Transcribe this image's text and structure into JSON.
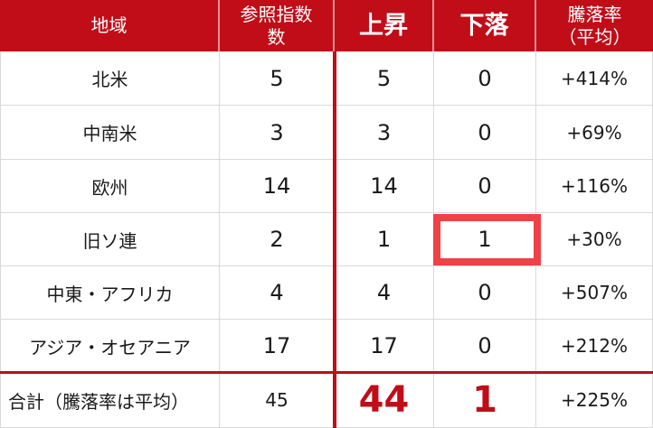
{
  "chart_data": {
    "type": "table",
    "columns": [
      "地域",
      "参照指数数",
      "上昇",
      "下落",
      "騰落率（平均）"
    ],
    "rows": [
      [
        "北米",
        "5",
        "5",
        "0",
        "+414%"
      ],
      [
        "中南米",
        "3",
        "3",
        "0",
        "+69%"
      ],
      [
        "欧州",
        "14",
        "14",
        "0",
        "+116%"
      ],
      [
        "旧ソ連",
        "2",
        "1",
        "1",
        "+30%"
      ],
      [
        "中東・アフリカ",
        "4",
        "4",
        "0",
        "+507%"
      ],
      [
        "アジア・オセアニア",
        "17",
        "17",
        "0",
        "+212%"
      ],
      [
        "合計（騰落率は平均）",
        "45",
        "44",
        "1",
        "+225%"
      ]
    ],
    "highlight": {
      "row": "旧ソ連",
      "column": "下落",
      "value": "1"
    },
    "layout_hints": {
      "thick_red_rule_left_of_column": "上昇",
      "red_rule_above_row": "合計（騰落率は平均）",
      "grid": "on"
    }
  },
  "header_display": {
    "region": "地域",
    "ref_count_lines": [
      "参照指数",
      "数"
    ],
    "up": "上昇",
    "down": "下落",
    "change_lines": [
      "騰落率",
      "（平均）"
    ]
  },
  "colors": {
    "header_bg": "#C00D18",
    "header_text": "#FFFFFF",
    "accent_red": "#C00D18",
    "total_value_red": "#C00D18",
    "highlight_box_red": "#F04146",
    "grid_line": "#D9D9D9",
    "body_text": "#1A1A1A"
  }
}
